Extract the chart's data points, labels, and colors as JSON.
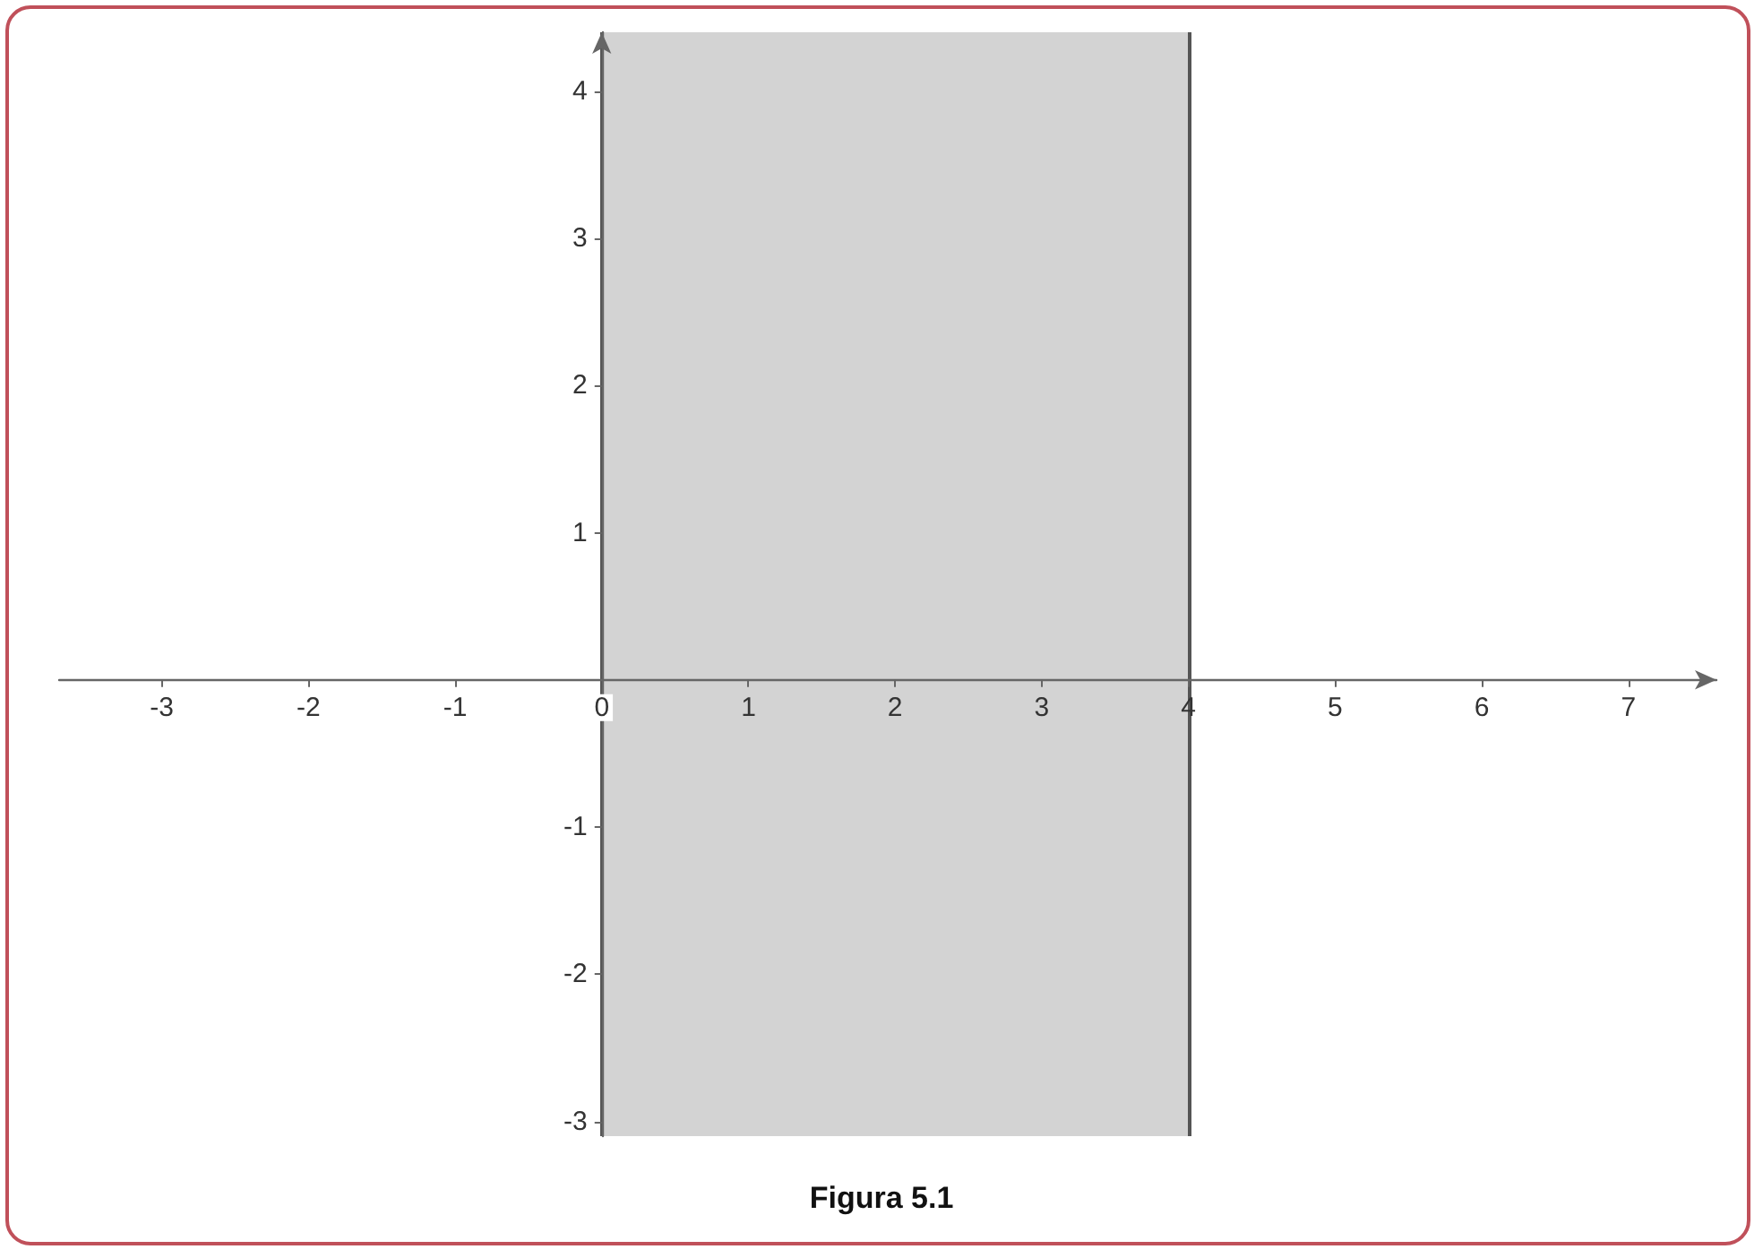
{
  "chart_data": {
    "type": "line",
    "title": "Figura 5.1",
    "xlim": [
      -3.7,
      7.6
    ],
    "ylim": [
      -3.1,
      4.4
    ],
    "xticks": [
      -3,
      -2,
      -1,
      0,
      1,
      2,
      3,
      4,
      5,
      6,
      7
    ],
    "yticks": [
      -3,
      -2,
      -1,
      1,
      2,
      3,
      4
    ],
    "grid": false,
    "bands": [
      {
        "axis": "x",
        "from": 0,
        "to": 4,
        "color": "#d3d3d3"
      }
    ],
    "ref_lines": [
      {
        "axis": "x",
        "value": 0,
        "color": "#555555",
        "line_style": "solid"
      },
      {
        "axis": "x",
        "value": 4,
        "color": "#555555",
        "line_style": "solid"
      }
    ]
  }
}
